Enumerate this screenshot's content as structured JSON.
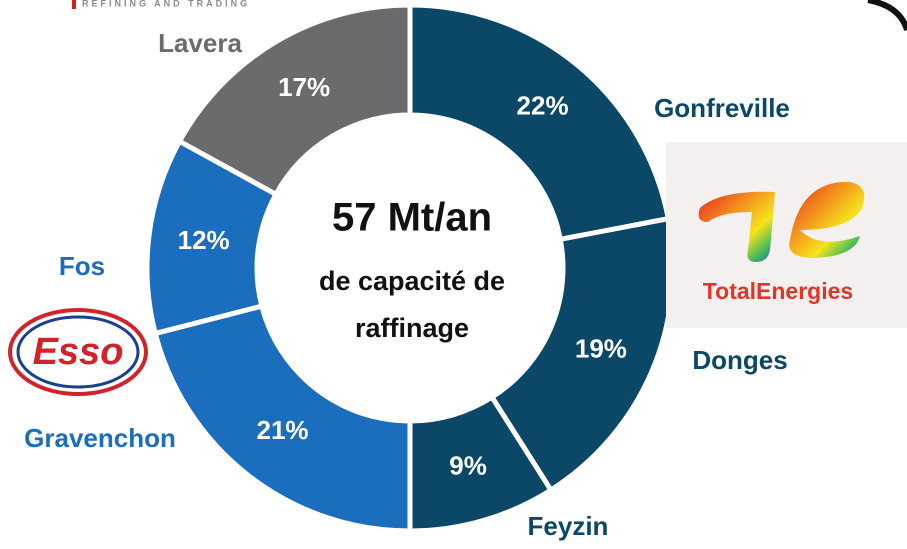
{
  "header": {
    "tagline": "REFINING AND TRADING"
  },
  "chart_data": {
    "type": "donut",
    "center_text": [
      "57 Mt/an",
      "de capacité de",
      "raffinage"
    ],
    "categories": [
      "Gonfreville",
      "Donges",
      "Feyzin",
      "Gravenchon",
      "Fos",
      "Lavera"
    ],
    "values": [
      22,
      19,
      9,
      21,
      12,
      17
    ],
    "value_labels": [
      "22%",
      "19%",
      "9%",
      "21%",
      "12%",
      "17%"
    ],
    "colors": [
      "#0b4766",
      "#0b4766",
      "#0b4766",
      "#1b6dbd",
      "#1b6dbd",
      "#6b6b6d"
    ],
    "label_colors": [
      "#0b4766",
      "#0b4766",
      "#0b4766",
      "#1b6dbd",
      "#1b6dbd",
      "#6b6b6d"
    ]
  },
  "logos": {
    "total": "TotalEnergies",
    "esso": "Esso"
  }
}
